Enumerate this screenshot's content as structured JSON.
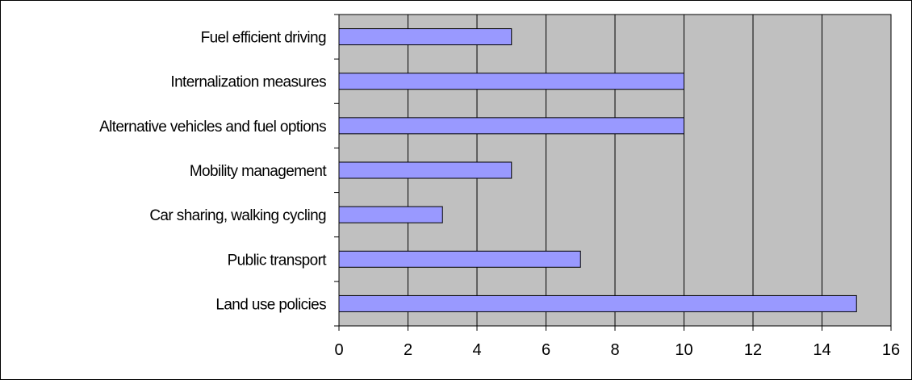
{
  "chart_data": {
    "type": "bar",
    "orientation": "horizontal",
    "title": "",
    "xlabel": "",
    "ylabel": "",
    "categories": [
      "Fuel efficient driving",
      "Internalization measures",
      "Alternative vehicles and fuel options",
      "Mobility management",
      "Car sharing, walking cycling",
      "Public transport",
      "Land use policies"
    ],
    "values": [
      5,
      10,
      10,
      5,
      3,
      7,
      15
    ],
    "xlim": [
      0,
      16
    ],
    "xticks": [
      "0",
      "2",
      "4",
      "6",
      "8",
      "10",
      "12",
      "14",
      "16"
    ],
    "grid": "vertical",
    "legend": "none",
    "colors": {
      "bar_fill": "#9999ff",
      "bar_stroke": "#000000",
      "plot_background": "#c0c0c0",
      "gridline": "#000000"
    }
  }
}
